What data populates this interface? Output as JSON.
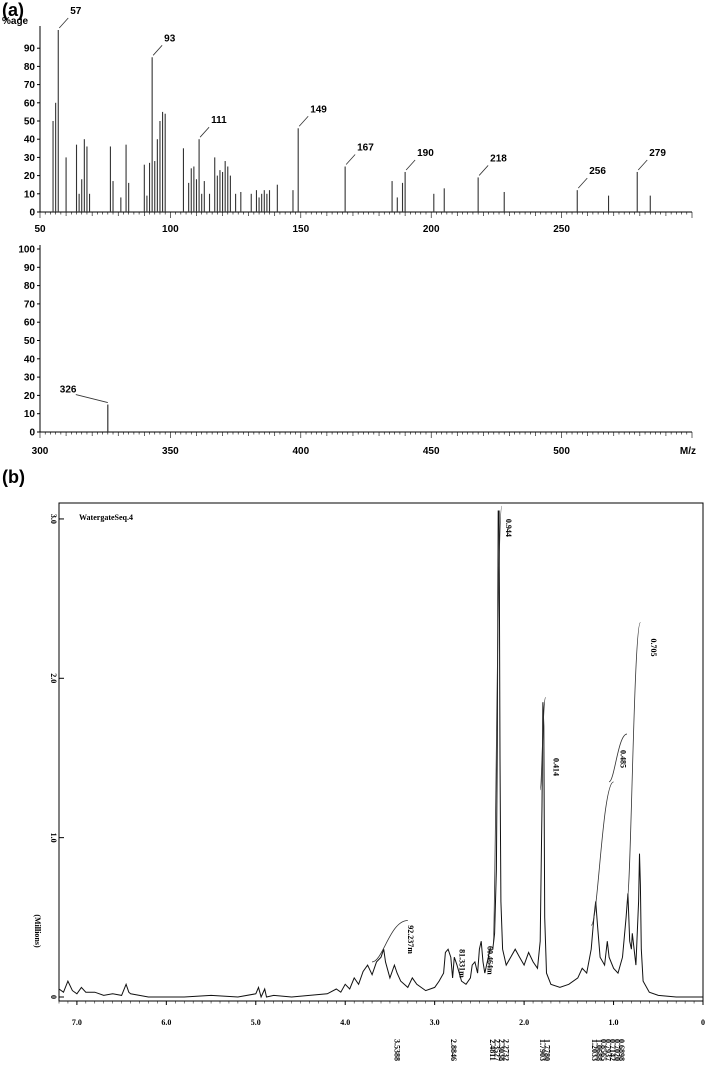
{
  "panels": {
    "a": "(a)",
    "b": "(b)"
  },
  "chart_data": [
    {
      "type": "bar",
      "panel": "(a)",
      "ylabel": "%age",
      "x_range": [
        50,
        300
      ],
      "ylim": [
        0,
        100
      ],
      "x_ticks": [
        50,
        100,
        150,
        200,
        250
      ],
      "y_ticks": [
        0,
        10,
        20,
        30,
        40,
        50,
        60,
        70,
        80,
        90
      ],
      "peaks": [
        [
          55,
          50
        ],
        [
          56,
          60
        ],
        [
          57,
          100
        ],
        [
          60,
          30
        ],
        [
          64,
          37
        ],
        [
          65,
          10
        ],
        [
          66,
          18
        ],
        [
          67,
          40
        ],
        [
          68,
          36
        ],
        [
          69,
          10
        ],
        [
          77,
          36
        ],
        [
          78,
          17
        ],
        [
          81,
          8
        ],
        [
          83,
          37
        ],
        [
          84,
          16
        ],
        [
          90,
          26
        ],
        [
          91,
          9
        ],
        [
          92,
          27
        ],
        [
          93,
          85
        ],
        [
          94,
          28
        ],
        [
          95,
          40
        ],
        [
          96,
          50
        ],
        [
          97,
          55
        ],
        [
          98,
          54
        ],
        [
          105,
          35
        ],
        [
          107,
          16
        ],
        [
          108,
          24
        ],
        [
          109,
          25
        ],
        [
          110,
          18
        ],
        [
          111,
          40
        ],
        [
          112,
          10
        ],
        [
          113,
          17
        ],
        [
          115,
          10
        ],
        [
          117,
          30
        ],
        [
          118,
          20
        ],
        [
          119,
          23
        ],
        [
          120,
          22
        ],
        [
          121,
          28
        ],
        [
          122,
          25
        ],
        [
          123,
          20
        ],
        [
          125,
          10
        ],
        [
          127,
          11
        ],
        [
          131,
          10
        ],
        [
          133,
          12
        ],
        [
          134,
          8
        ],
        [
          135,
          10
        ],
        [
          136,
          12
        ],
        [
          137,
          10
        ],
        [
          138,
          12
        ],
        [
          141,
          15
        ],
        [
          147,
          12
        ],
        [
          149,
          46
        ],
        [
          167,
          25
        ],
        [
          185,
          17
        ],
        [
          187,
          8
        ],
        [
          189,
          16
        ],
        [
          190,
          22
        ],
        [
          201,
          10
        ],
        [
          205,
          13
        ],
        [
          218,
          19
        ],
        [
          228,
          11
        ],
        [
          256,
          12
        ],
        [
          268,
          9
        ],
        [
          279,
          22
        ],
        [
          284,
          9
        ]
      ],
      "labels": [
        {
          "text": "57",
          "x": 57
        },
        {
          "text": "93",
          "x": 93
        },
        {
          "text": "111",
          "x": 111
        },
        {
          "text": "149",
          "x": 149
        },
        {
          "text": "167",
          "x": 167
        },
        {
          "text": "190",
          "x": 190
        },
        {
          "text": "218",
          "x": 218
        },
        {
          "text": "256",
          "x": 256
        },
        {
          "text": "279",
          "x": 279
        }
      ]
    },
    {
      "type": "bar",
      "panel": "(a) continued",
      "xlabel": "M/z",
      "x_range": [
        300,
        550
      ],
      "ylim": [
        0,
        100
      ],
      "x_ticks": [
        300,
        350,
        400,
        450,
        500
      ],
      "y_ticks": [
        0,
        10,
        20,
        30,
        40,
        50,
        60,
        70,
        80,
        90,
        100
      ],
      "peaks": [
        [
          326,
          15
        ]
      ],
      "labels": [
        {
          "text": "326",
          "x": 326
        }
      ]
    },
    {
      "type": "line",
      "panel": "(b)",
      "title": "WatergateSeq.4",
      "ylabel": "(Millions)",
      "x_range": [
        7.2,
        0
      ],
      "x_reversed": true,
      "ylim": [
        0,
        3.1
      ],
      "x_ticks": [
        "7.0",
        "6.0",
        "5.0",
        "4.0",
        "3.0",
        "2.0",
        "1.0",
        "0"
      ],
      "y_ticks": [
        "0",
        "1.0",
        "2.0",
        "3.0"
      ],
      "peak_annotations": [
        "0.944",
        "0.705",
        "0.485",
        "0.414",
        "92.237m",
        "81.331m",
        "60.464m"
      ],
      "integral_values": [
        "3.5388",
        "2.8846",
        "2.4811",
        "2.3527",
        "2.3038",
        "2.2732",
        "1.7903",
        "1.7780",
        "1.2033",
        "1.0688",
        "0.8565",
        "0.7937",
        "0.7142",
        "0.7020",
        "0.6898"
      ],
      "spectrum": [
        [
          7.2,
          0.05
        ],
        [
          7.15,
          0.03
        ],
        [
          7.1,
          0.1
        ],
        [
          7.05,
          0.04
        ],
        [
          7.0,
          0.02
        ],
        [
          6.95,
          0.06
        ],
        [
          6.9,
          0.03
        ],
        [
          6.8,
          0.03
        ],
        [
          6.7,
          0.01
        ],
        [
          6.6,
          0.02
        ],
        [
          6.5,
          0.01
        ],
        [
          6.45,
          0.08
        ],
        [
          6.42,
          0.03
        ],
        [
          6.4,
          0.02
        ],
        [
          6.2,
          0.0
        ],
        [
          6.0,
          0.0
        ],
        [
          5.8,
          0.0
        ],
        [
          5.5,
          0.01
        ],
        [
          5.2,
          0.0
        ],
        [
          5.0,
          0.02
        ],
        [
          4.97,
          0.06
        ],
        [
          4.94,
          0.0
        ],
        [
          4.9,
          0.05
        ],
        [
          4.88,
          0.0
        ],
        [
          4.8,
          0.01
        ],
        [
          4.6,
          0.0
        ],
        [
          4.4,
          0.01
        ],
        [
          4.2,
          0.02
        ],
        [
          4.1,
          0.05
        ],
        [
          4.05,
          0.03
        ],
        [
          4.0,
          0.08
        ],
        [
          3.95,
          0.05
        ],
        [
          3.9,
          0.12
        ],
        [
          3.85,
          0.08
        ],
        [
          3.8,
          0.16
        ],
        [
          3.75,
          0.2
        ],
        [
          3.7,
          0.14
        ],
        [
          3.65,
          0.22
        ],
        [
          3.6,
          0.25
        ],
        [
          3.57,
          0.3
        ],
        [
          3.55,
          0.22
        ],
        [
          3.5,
          0.12
        ],
        [
          3.45,
          0.2
        ],
        [
          3.42,
          0.15
        ],
        [
          3.38,
          0.1
        ],
        [
          3.3,
          0.06
        ],
        [
          3.25,
          0.12
        ],
        [
          3.2,
          0.08
        ],
        [
          3.1,
          0.04
        ],
        [
          3.0,
          0.06
        ],
        [
          2.95,
          0.1
        ],
        [
          2.9,
          0.15
        ],
        [
          2.88,
          0.28
        ],
        [
          2.85,
          0.3
        ],
        [
          2.82,
          0.25
        ],
        [
          2.8,
          0.12
        ],
        [
          2.78,
          0.25
        ],
        [
          2.75,
          0.2
        ],
        [
          2.7,
          0.1
        ],
        [
          2.65,
          0.08
        ],
        [
          2.6,
          0.12
        ],
        [
          2.58,
          0.2
        ],
        [
          2.55,
          0.22
        ],
        [
          2.52,
          0.15
        ],
        [
          2.5,
          0.3
        ],
        [
          2.48,
          0.35
        ],
        [
          2.46,
          0.22
        ],
        [
          2.44,
          0.15
        ],
        [
          2.4,
          0.25
        ],
        [
          2.38,
          0.3
        ],
        [
          2.35,
          0.3
        ],
        [
          2.33,
          0.4
        ],
        [
          2.31,
          0.8
        ],
        [
          2.3,
          1.6
        ],
        [
          2.29,
          3.05
        ],
        [
          2.28,
          3.05
        ],
        [
          2.27,
          1.5
        ],
        [
          2.26,
          0.6
        ],
        [
          2.24,
          0.3
        ],
        [
          2.2,
          0.2
        ],
        [
          2.15,
          0.25
        ],
        [
          2.1,
          0.3
        ],
        [
          2.05,
          0.25
        ],
        [
          2.0,
          0.2
        ],
        [
          1.95,
          0.28
        ],
        [
          1.9,
          0.22
        ],
        [
          1.85,
          0.18
        ],
        [
          1.82,
          0.35
        ],
        [
          1.8,
          1.2
        ],
        [
          1.79,
          1.85
        ],
        [
          1.78,
          1.7
        ],
        [
          1.77,
          0.5
        ],
        [
          1.75,
          0.15
        ],
        [
          1.7,
          0.08
        ],
        [
          1.6,
          0.06
        ],
        [
          1.5,
          0.08
        ],
        [
          1.4,
          0.12
        ],
        [
          1.35,
          0.18
        ],
        [
          1.3,
          0.15
        ],
        [
          1.25,
          0.3
        ],
        [
          1.22,
          0.5
        ],
        [
          1.2,
          0.6
        ],
        [
          1.18,
          0.45
        ],
        [
          1.15,
          0.25
        ],
        [
          1.1,
          0.2
        ],
        [
          1.07,
          0.35
        ],
        [
          1.05,
          0.25
        ],
        [
          1.0,
          0.18
        ],
        [
          0.95,
          0.15
        ],
        [
          0.9,
          0.25
        ],
        [
          0.86,
          0.5
        ],
        [
          0.84,
          0.65
        ],
        [
          0.82,
          0.35
        ],
        [
          0.8,
          0.3
        ],
        [
          0.79,
          0.4
        ],
        [
          0.77,
          0.3
        ],
        [
          0.75,
          0.2
        ],
        [
          0.72,
          0.6
        ],
        [
          0.71,
          0.9
        ],
        [
          0.7,
          0.7
        ],
        [
          0.69,
          0.3
        ],
        [
          0.67,
          0.1
        ],
        [
          0.6,
          0.03
        ],
        [
          0.5,
          0.01
        ],
        [
          0.3,
          0.0
        ],
        [
          0.0,
          0.0
        ]
      ]
    }
  ]
}
